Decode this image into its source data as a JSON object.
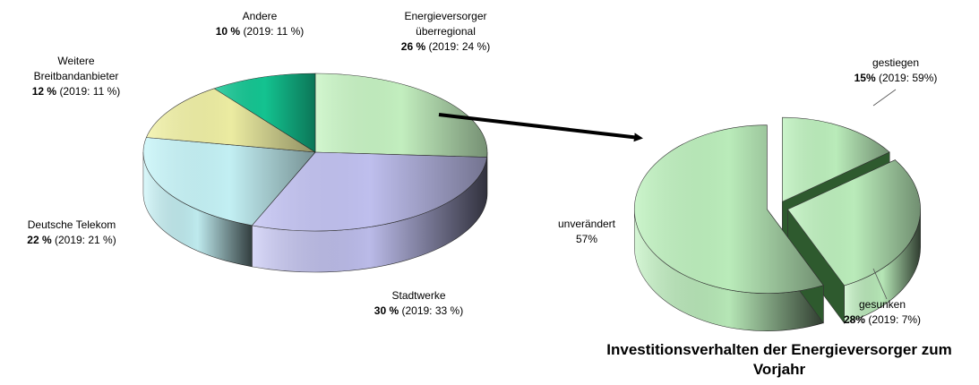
{
  "chart_data": [
    {
      "type": "pie3d",
      "categories": [
        "Energieversorger überregional",
        "Stadtwerke",
        "Deutsche Telekom",
        "Weitere Breitbandanbieter",
        "Andere"
      ],
      "values": [
        26,
        30,
        22,
        12,
        10
      ],
      "value_labels": [
        "26 %",
        "30 %",
        "22 %",
        "12 %",
        "10 %"
      ],
      "prior_labels": [
        "(2019: 24 %)",
        "(2019: 33 %)",
        "(2019: 21 %)",
        "(2019: 11 %)",
        "(2019: 11 %)"
      ],
      "colors": [
        "#c8f5c4",
        "#c4c4f4",
        "#c8f6fa",
        "#f2f2a6",
        "#14c894"
      ]
    },
    {
      "type": "pie3d",
      "title": "Investitionsverhalten der Energieversorger zum Vorjahr",
      "categories": [
        "gestiegen",
        "gesunken",
        "unverändert"
      ],
      "values": [
        15,
        28,
        57
      ],
      "value_labels": [
        "15%",
        "28%",
        "57%"
      ],
      "prior_labels": [
        "(2019: 59%)",
        "(2019: 7%)",
        null
      ],
      "colors": [
        "#bff2bf",
        "#bff2bf",
        "#bff2bf"
      ]
    }
  ]
}
